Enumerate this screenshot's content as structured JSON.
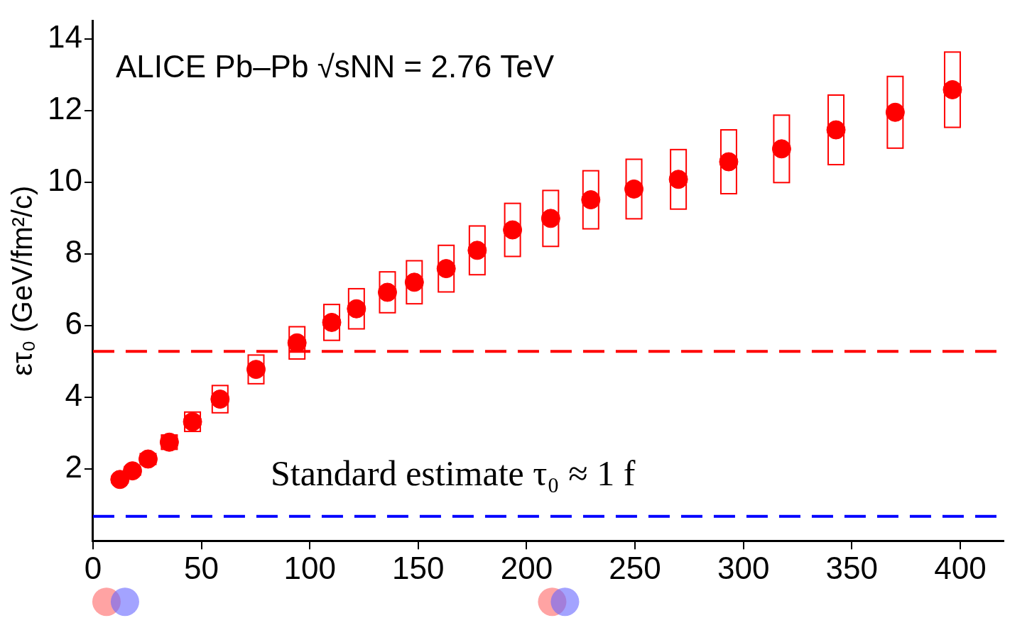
{
  "chart_data": {
    "type": "scatter",
    "title": "ALICE Pb–Pb √sNN = 2.76 TeV",
    "y_label": "ετ₀ (GeV/fm²/c)",
    "annotations": [
      "Standard estimate τ₀ ≈ 1 f"
    ],
    "x": [
      12.4,
      18.2,
      25.4,
      35.2,
      45.9,
      58.6,
      75.2,
      94.1,
      110.1,
      121.5,
      135.8,
      148.2,
      162.9,
      177.2,
      193.5,
      211.1,
      229.6,
      249.5,
      270.0,
      293.2,
      317.6,
      342.7,
      370.0,
      396.4
    ],
    "values": [
      1.71,
      1.95,
      2.28,
      2.75,
      3.32,
      3.95,
      4.78,
      5.52,
      6.09,
      6.47,
      6.93,
      7.21,
      7.59,
      8.1,
      8.67,
      8.99,
      9.51,
      9.81,
      10.08,
      10.57,
      10.93,
      11.46,
      11.95,
      12.58
    ],
    "errors": [
      0.1,
      0.12,
      0.15,
      0.2,
      0.27,
      0.38,
      0.4,
      0.45,
      0.5,
      0.56,
      0.57,
      0.6,
      0.65,
      0.68,
      0.74,
      0.78,
      0.81,
      0.83,
      0.83,
      0.89,
      0.94,
      0.97,
      1.0,
      1.05
    ],
    "color": "#ff0000",
    "marker": "circle",
    "hlines": [
      {
        "value": 5.28,
        "color": "#ff0000",
        "line_style": "dashed"
      },
      {
        "value": 0.68,
        "color": "#0000ff",
        "line_style": "dashed"
      }
    ],
    "xlim": [
      0,
      420
    ],
    "xticks": [
      0,
      50,
      100,
      150,
      200,
      250,
      300,
      350,
      400
    ],
    "ylim": [
      0,
      14.5
    ],
    "yticks": [
      2,
      4,
      6,
      8,
      10,
      12,
      14
    ],
    "grid": false
  }
}
